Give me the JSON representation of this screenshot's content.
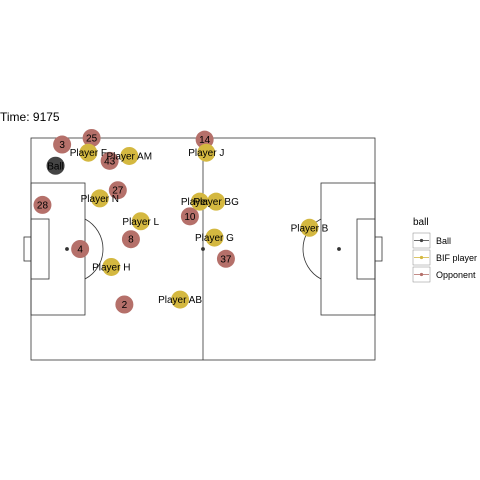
{
  "time_label": "Time: 9175",
  "colors": {
    "ball": "#444444",
    "bif_player": "#d4b840",
    "opponent": "#b5706a",
    "pitch_line": "#333333"
  },
  "legend": {
    "title": "ball",
    "items": [
      {
        "key": "ball",
        "label": "Ball"
      },
      {
        "key": "bif_player",
        "label": "BIF player"
      },
      {
        "key": "opponent",
        "label": "Opponent"
      }
    ]
  },
  "pitch": {
    "length": 105,
    "width": 68
  },
  "ball": {
    "label": "Ball",
    "x": 7.5,
    "y": 59.5
  },
  "bif_players": [
    {
      "label": "Player F",
      "x": 17.5,
      "y": 63.5
    },
    {
      "label": "Player AM",
      "x": 30.0,
      "y": 62.5
    },
    {
      "label": "Player J",
      "x": 53.5,
      "y": 63.5
    },
    {
      "label": "Player N",
      "x": 21.0,
      "y": 49.5
    },
    {
      "label": "Player L",
      "x": 33.5,
      "y": 42.5
    },
    {
      "label": "Player K",
      "x": 51.5,
      "y": 48.5
    },
    {
      "label": "Player BG",
      "x": 56.5,
      "y": 48.5
    },
    {
      "label": "Player G",
      "x": 56.0,
      "y": 37.5
    },
    {
      "label": "Player H",
      "x": 24.5,
      "y": 28.5
    },
    {
      "label": "Player AB",
      "x": 45.5,
      "y": 18.5
    },
    {
      "label": "Player B",
      "x": 85.0,
      "y": 40.5
    }
  ],
  "opponents": [
    {
      "label": "25",
      "x": 18.5,
      "y": 68.0
    },
    {
      "label": "3",
      "x": 9.5,
      "y": 66.0
    },
    {
      "label": "14",
      "x": 53.0,
      "y": 67.5
    },
    {
      "label": "43",
      "x": 24.0,
      "y": 61.0
    },
    {
      "label": "27",
      "x": 26.5,
      "y": 52.0
    },
    {
      "label": "28",
      "x": 3.5,
      "y": 47.5
    },
    {
      "label": "10",
      "x": 48.5,
      "y": 44.0
    },
    {
      "label": "8",
      "x": 30.5,
      "y": 37.0
    },
    {
      "label": "4",
      "x": 15.0,
      "y": 34.0
    },
    {
      "label": "37",
      "x": 59.5,
      "y": 31.0
    },
    {
      "label": "2",
      "x": 28.5,
      "y": 17.0
    }
  ]
}
